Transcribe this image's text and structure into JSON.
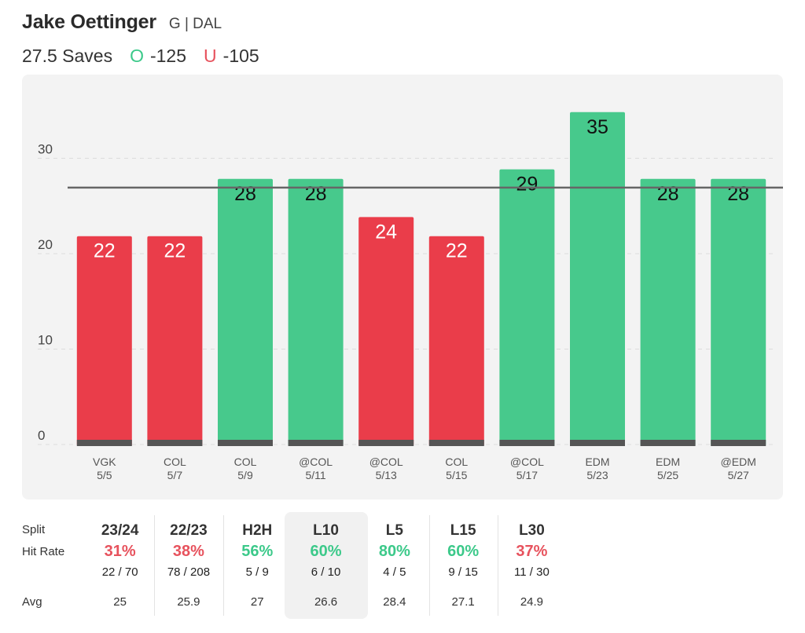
{
  "header": {
    "player_name": "Jake Oettinger",
    "player_meta": "G | DAL",
    "line_label": "27.5 Saves",
    "over_letter": "O",
    "over_odds": "-125",
    "under_letter": "U",
    "under_odds": "-105"
  },
  "colors": {
    "over": "#47c98c",
    "under": "#ea3d4a",
    "line": "#666666",
    "base": "#555555"
  },
  "chart_data": {
    "type": "bar",
    "title": "",
    "xlabel": "",
    "ylabel": "",
    "ylim": [
      0,
      35
    ],
    "yticks": [
      0,
      10,
      20,
      30
    ],
    "threshold": 27.5,
    "categories": [
      {
        "opp": "VGK",
        "date": "5/5"
      },
      {
        "opp": "COL",
        "date": "5/7"
      },
      {
        "opp": "COL",
        "date": "5/9"
      },
      {
        "opp": "@COL",
        "date": "5/11"
      },
      {
        "opp": "@COL",
        "date": "5/13"
      },
      {
        "opp": "COL",
        "date": "5/15"
      },
      {
        "opp": "@COL",
        "date": "5/17"
      },
      {
        "opp": "EDM",
        "date": "5/23"
      },
      {
        "opp": "EDM",
        "date": "5/25"
      },
      {
        "opp": "@EDM",
        "date": "5/27"
      }
    ],
    "values": [
      22,
      22,
      28,
      28,
      24,
      22,
      29,
      35,
      28,
      28
    ]
  },
  "stats": {
    "row_labels": {
      "split": "Split",
      "hit_rate": "Hit Rate",
      "avg": "Avg"
    },
    "columns": [
      {
        "split": "23/24",
        "hit_rate": "31%",
        "result": "bad",
        "fraction": "22 / 70",
        "avg": "25"
      },
      {
        "split": "22/23",
        "hit_rate": "38%",
        "result": "bad",
        "fraction": "78 / 208",
        "avg": "25.9"
      },
      {
        "split": "H2H",
        "hit_rate": "56%",
        "result": "good",
        "fraction": "5 / 9",
        "avg": "27"
      },
      {
        "split": "L10",
        "hit_rate": "60%",
        "result": "good",
        "fraction": "6 / 10",
        "avg": "26.6",
        "selected": true
      },
      {
        "split": "L5",
        "hit_rate": "80%",
        "result": "good",
        "fraction": "4 / 5",
        "avg": "28.4"
      },
      {
        "split": "L15",
        "hit_rate": "60%",
        "result": "good",
        "fraction": "9 / 15",
        "avg": "27.1"
      },
      {
        "split": "L30",
        "hit_rate": "37%",
        "result": "bad",
        "fraction": "11 / 30",
        "avg": "24.9"
      }
    ]
  }
}
